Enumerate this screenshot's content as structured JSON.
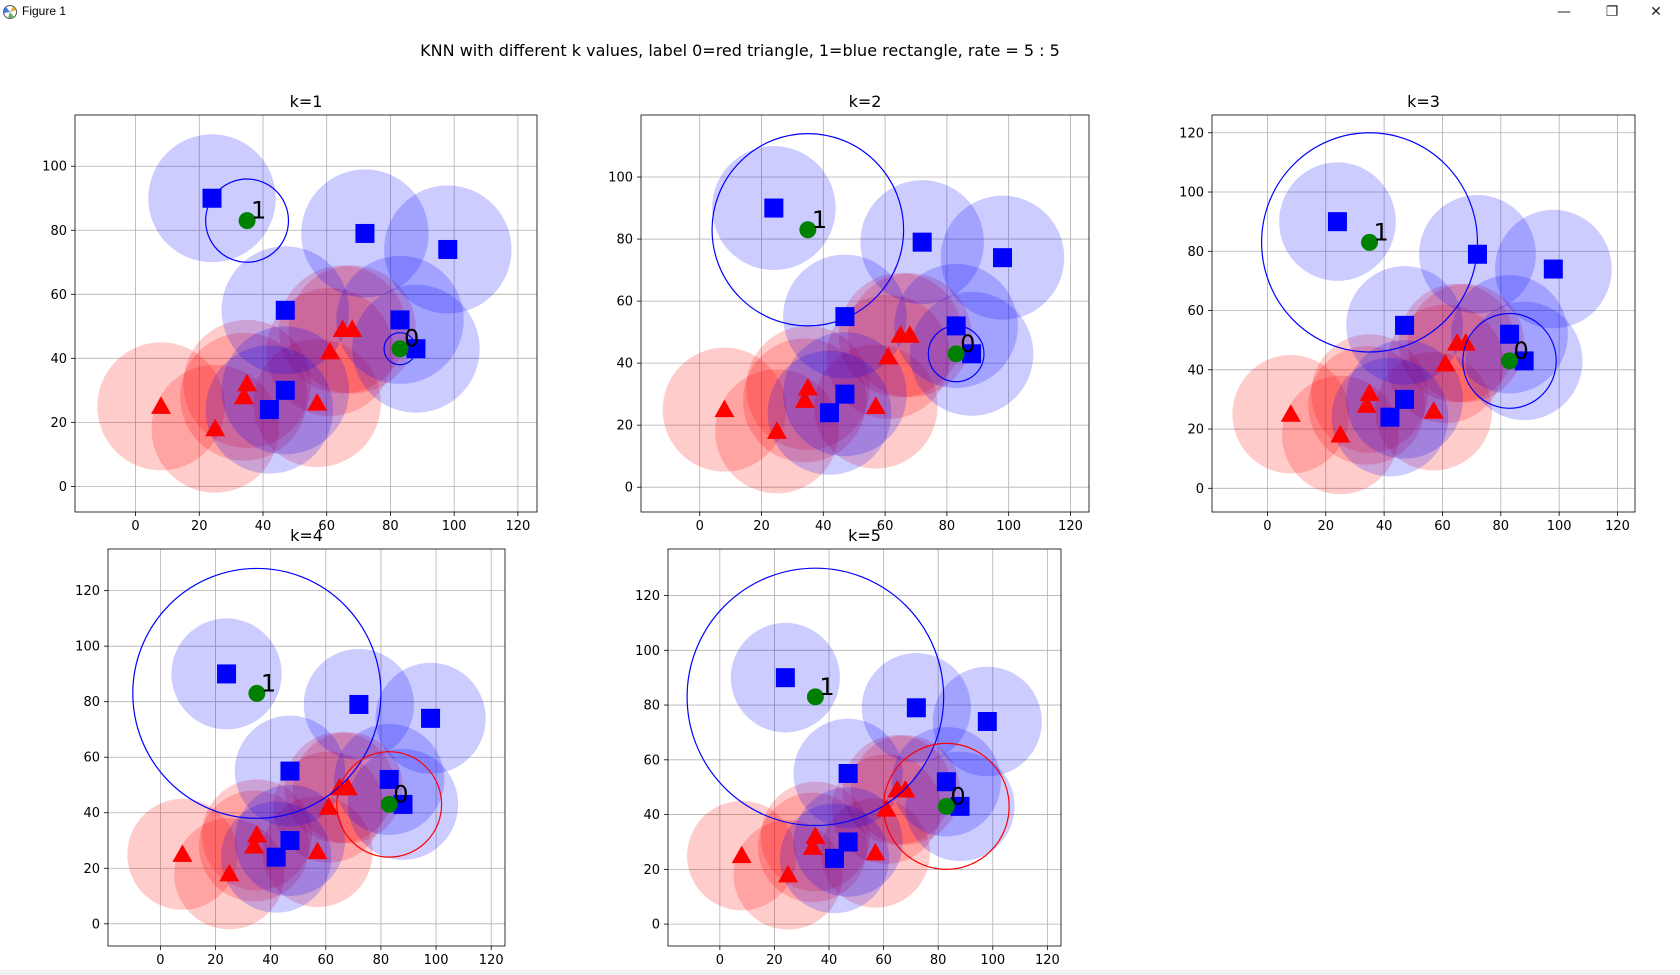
{
  "window": {
    "title": "Figure 1",
    "buttons": {
      "minimize": "—",
      "restore": "❐",
      "close": "✕"
    }
  },
  "colors": {
    "red": "#ff0000",
    "blue": "#0000ff",
    "green": "#008000",
    "grid": "#b0b0b0"
  },
  "chart_data": {
    "type": "scatter",
    "suptitle": "KNN with different k values, label 0=red triangle, 1=blue rectangle, rate = 5 : 5",
    "neighborhood_radius": 20,
    "training_points": [
      {
        "label": 0,
        "x": 8,
        "y": 25
      },
      {
        "label": 0,
        "x": 25,
        "y": 18
      },
      {
        "label": 0,
        "x": 35,
        "y": 32
      },
      {
        "label": 0,
        "x": 34,
        "y": 28
      },
      {
        "label": 0,
        "x": 57,
        "y": 26
      },
      {
        "label": 0,
        "x": 61,
        "y": 42
      },
      {
        "label": 0,
        "x": 65,
        "y": 49
      },
      {
        "label": 0,
        "x": 68,
        "y": 49
      },
      {
        "label": 1,
        "x": 24,
        "y": 90
      },
      {
        "label": 1,
        "x": 72,
        "y": 79
      },
      {
        "label": 1,
        "x": 98,
        "y": 74
      },
      {
        "label": 1,
        "x": 47,
        "y": 55
      },
      {
        "label": 1,
        "x": 47,
        "y": 30
      },
      {
        "label": 1,
        "x": 42,
        "y": 24
      },
      {
        "label": 1,
        "x": 83,
        "y": 52
      },
      {
        "label": 1,
        "x": 88,
        "y": 43
      }
    ],
    "query_points": [
      {
        "name": "1",
        "x": 35,
        "y": 83
      },
      {
        "name": "0",
        "x": 83,
        "y": 43
      }
    ],
    "subplots": [
      {
        "title": "k=1",
        "xlim": [
          -19,
          126
        ],
        "ylim": [
          -8,
          116
        ],
        "xticks": [
          "0",
          "20",
          "40",
          "60",
          "80",
          "100",
          "120"
        ],
        "yticks": [
          "0",
          "20",
          "40",
          "60",
          "80",
          "100"
        ],
        "query_circles": [
          {
            "query": "1",
            "radius": 13,
            "color": "blue"
          },
          {
            "query": "0",
            "radius": 5,
            "color": "blue"
          }
        ]
      },
      {
        "title": "k=2",
        "xlim": [
          -19,
          126
        ],
        "ylim": [
          -8,
          120
        ],
        "xticks": [
          "0",
          "20",
          "40",
          "60",
          "80",
          "100",
          "120"
        ],
        "yticks": [
          "0",
          "20",
          "40",
          "60",
          "80",
          "100"
        ],
        "query_circles": [
          {
            "query": "1",
            "radius": 31,
            "color": "blue"
          },
          {
            "query": "0",
            "radius": 9,
            "color": "blue"
          }
        ]
      },
      {
        "title": "k=3",
        "xlim": [
          -19,
          126
        ],
        "ylim": [
          -8,
          126
        ],
        "xticks": [
          "0",
          "20",
          "40",
          "60",
          "80",
          "100",
          "120"
        ],
        "yticks": [
          "0",
          "20",
          "40",
          "60",
          "80",
          "100",
          "120"
        ],
        "query_circles": [
          {
            "query": "1",
            "radius": 37,
            "color": "blue"
          },
          {
            "query": "0",
            "radius": 16,
            "color": "blue"
          }
        ]
      },
      {
        "title": "k=4",
        "xlim": [
          -19,
          125
        ],
        "ylim": [
          -8,
          135
        ],
        "xticks": [
          "0",
          "20",
          "40",
          "60",
          "80",
          "100",
          "120"
        ],
        "yticks": [
          "0",
          "20",
          "40",
          "60",
          "80",
          "100",
          "120"
        ],
        "query_circles": [
          {
            "query": "1",
            "radius": 45,
            "color": "blue"
          },
          {
            "query": "0",
            "radius": 19,
            "color": "red"
          }
        ]
      },
      {
        "title": "k=5",
        "xlim": [
          -19,
          125
        ],
        "ylim": [
          -8,
          137
        ],
        "xticks": [
          "0",
          "20",
          "40",
          "60",
          "80",
          "100",
          "120"
        ],
        "yticks": [
          "0",
          "20",
          "40",
          "60",
          "80",
          "100",
          "120"
        ],
        "query_circles": [
          {
            "query": "1",
            "radius": 47,
            "color": "blue"
          },
          {
            "query": "0",
            "radius": 23,
            "color": "red"
          }
        ]
      }
    ]
  }
}
